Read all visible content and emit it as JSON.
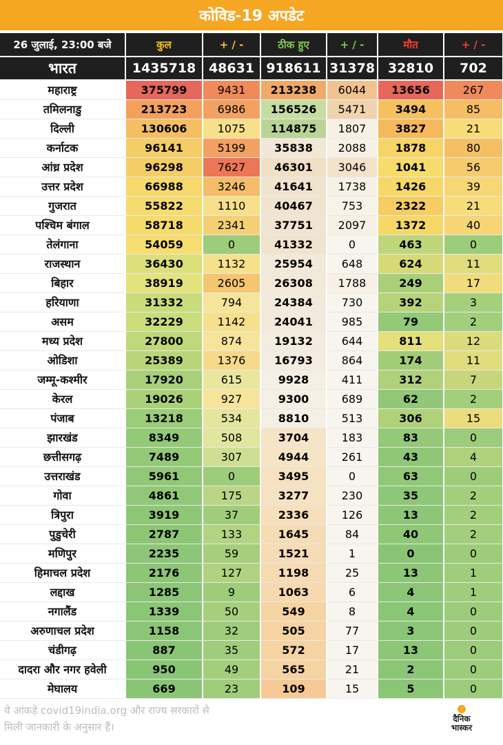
{
  "title": "कोविड-19 अपडेट",
  "headers": {
    "date": "26 जुलाई, 23:00 बजे",
    "total": "कुल",
    "total_change": "+ / -",
    "recovered": "ठीक हुए",
    "recovered_change": "+ / -",
    "deaths": "मौत",
    "deaths_change": "+ / -"
  },
  "header_colors": {
    "total": "#f7c21b",
    "recovered": "#7ec850",
    "deaths": "#ff3b30"
  },
  "national": {
    "name": "भारत",
    "total": "1435718",
    "total_change": "48631",
    "recovered": "918611",
    "recovered_change": "31378",
    "deaths": "32810",
    "deaths_change": "702"
  },
  "rows": [
    {
      "name": "महाराष्ट्र",
      "total": "375799",
      "total_change": "9431",
      "recovered": "213238",
      "recovered_change": "6044",
      "deaths": "13656",
      "deaths_change": "267",
      "colors": [
        "#e8675b",
        "#f08a5a",
        "#f0a967",
        "#f1c391",
        "#e8675b",
        "#f08a5a"
      ]
    },
    {
      "name": "तमिलनाडु",
      "total": "213723",
      "total_change": "6986",
      "recovered": "156526",
      "recovered_change": "5471",
      "deaths": "3494",
      "deaths_change": "85",
      "colors": [
        "#f2a15c",
        "#f3a162",
        "#c7dca2",
        "#f0d3ad",
        "#f5c15e",
        "#f5bd66"
      ]
    },
    {
      "name": "दिल्ली",
      "total": "130606",
      "total_change": "1075",
      "recovered": "114875",
      "recovered_change": "1807",
      "deaths": "3827",
      "deaths_change": "21",
      "colors": [
        "#f4bf62",
        "#f6e08a",
        "#b9d596",
        "#f7f0e4",
        "#f5b95c",
        "#f7dc79"
      ]
    },
    {
      "name": "कर्नाटक",
      "total": "96141",
      "total_change": "5199",
      "recovered": "35838",
      "recovered_change": "2088",
      "deaths": "1878",
      "deaths_change": "80",
      "colors": [
        "#f5cd66",
        "#f3a162",
        "#f2e7d6",
        "#f7f0e4",
        "#f6d466",
        "#f5bf66"
      ]
    },
    {
      "name": "आंध्र प्रदेश",
      "total": "96298",
      "total_change": "7627",
      "recovered": "46301",
      "recovered_change": "3046",
      "deaths": "1041",
      "deaths_change": "56",
      "colors": [
        "#f5cd66",
        "#ec7658",
        "#f0e0c6",
        "#f4e2cb",
        "#f6dc6a",
        "#f6cb6f"
      ]
    },
    {
      "name": "उत्तर प्रदेश",
      "total": "66988",
      "total_change": "3246",
      "recovered": "41641",
      "recovered_change": "1738",
      "deaths": "1426",
      "deaths_change": "39",
      "colors": [
        "#f6d86b",
        "#f4bd6a",
        "#f1e4cf",
        "#f7f0e4",
        "#f6d869",
        "#f7d676"
      ]
    },
    {
      "name": "गुजरात",
      "total": "55822",
      "total_change": "1110",
      "recovered": "40467",
      "recovered_change": "753",
      "deaths": "2322",
      "deaths_change": "21",
      "colors": [
        "#f6dc6e",
        "#f6e08a",
        "#f1e4cf",
        "#f7f3e8",
        "#f6cd63",
        "#f7dc79"
      ]
    },
    {
      "name": "पश्चिम बंगाल",
      "total": "58718",
      "total_change": "2341",
      "recovered": "37751",
      "recovered_change": "2097",
      "deaths": "1372",
      "deaths_change": "40",
      "colors": [
        "#f6da6c",
        "#f5cf74",
        "#f1e5d1",
        "#f7f0e4",
        "#f6d869",
        "#f6d576"
      ]
    },
    {
      "name": "तेलंगाना",
      "total": "54059",
      "total_change": "0",
      "recovered": "41332",
      "recovered_change": "0",
      "deaths": "463",
      "deaths_change": "0",
      "colors": [
        "#f6dd6f",
        "#9dcc7a",
        "#f1e4cf",
        "#f8f4ee",
        "#bfd57a",
        "#9dcc7a"
      ]
    },
    {
      "name": "राजस्थान",
      "total": "36430",
      "total_change": "1132",
      "recovered": "25954",
      "recovered_change": "648",
      "deaths": "624",
      "deaths_change": "11",
      "colors": [
        "#dce07a",
        "#f6e08a",
        "#f3e9d8",
        "#f8f4ee",
        "#d5da76",
        "#dfdc7d"
      ]
    },
    {
      "name": "बिहार",
      "total": "38919",
      "total_change": "2605",
      "recovered": "26308",
      "recovered_change": "1788",
      "deaths": "249",
      "deaths_change": "17",
      "colors": [
        "#e3e27c",
        "#f5c66f",
        "#f3e9d8",
        "#f7f0e4",
        "#a9cf78",
        "#f0dc7a"
      ]
    },
    {
      "name": "हरियाणा",
      "total": "31332",
      "total_change": "794",
      "recovered": "24384",
      "recovered_change": "730",
      "deaths": "392",
      "deaths_change": "3",
      "colors": [
        "#c9dc7a",
        "#f6e49a",
        "#f3eadb",
        "#f8f4ee",
        "#b6d37a",
        "#a6cf7c"
      ]
    },
    {
      "name": "असम",
      "total": "32229",
      "total_change": "1142",
      "recovered": "24041",
      "recovered_change": "985",
      "deaths": "79",
      "deaths_change": "2",
      "colors": [
        "#cbdc7a",
        "#f6e08a",
        "#f3eadb",
        "#f8f4ee",
        "#93c977",
        "#a3ce7b"
      ]
    },
    {
      "name": "मध्य प्रदेश",
      "total": "27800",
      "total_change": "874",
      "recovered": "19132",
      "recovered_change": "644",
      "deaths": "811",
      "deaths_change": "12",
      "colors": [
        "#bfd879",
        "#f6e49a",
        "#f4ecdf",
        "#f8f4ee",
        "#e3df7a",
        "#dcdb7c"
      ]
    },
    {
      "name": "ओडिशा",
      "total": "25389",
      "total_change": "1376",
      "recovered": "16793",
      "recovered_change": "864",
      "deaths": "174",
      "deaths_change": "11",
      "colors": [
        "#b8d679",
        "#f6d98a",
        "#f4ece0",
        "#f8f4ee",
        "#a2cd78",
        "#dfdc7d"
      ]
    },
    {
      "name": "जम्मू-कश्मीर",
      "total": "17920",
      "total_change": "615",
      "recovered": "9928",
      "recovered_change": "411",
      "deaths": "312",
      "deaths_change": "7",
      "colors": [
        "#a7d078",
        "#e9e79e",
        "#f5efe4",
        "#f8f4ee",
        "#b0d179",
        "#c7d67c"
      ]
    },
    {
      "name": "केरल",
      "total": "19026",
      "total_change": "927",
      "recovered": "9300",
      "recovered_change": "689",
      "deaths": "62",
      "deaths_change": "2",
      "colors": [
        "#aad178",
        "#f6e49a",
        "#f5efe4",
        "#f8f4ee",
        "#91c877",
        "#a3ce7b"
      ]
    },
    {
      "name": "पंजाब",
      "total": "13218",
      "total_change": "534",
      "recovered": "8810",
      "recovered_change": "513",
      "deaths": "306",
      "deaths_change": "15",
      "colors": [
        "#9bcc78",
        "#e4e69d",
        "#f5efe4",
        "#f8f4ee",
        "#b0d179",
        "#ecdc7c"
      ]
    },
    {
      "name": "झारखंड",
      "total": "8349",
      "total_change": "508",
      "recovered": "3704",
      "recovered_change": "183",
      "deaths": "83",
      "deaths_change": "0",
      "colors": [
        "#94c977",
        "#e1e59d",
        "#f6e4c6",
        "#f8f4ee",
        "#94c977",
        "#9dcc7a"
      ]
    },
    {
      "name": "छत्तीसगढ़",
      "total": "7489",
      "total_change": "307",
      "recovered": "4944",
      "recovered_change": "261",
      "deaths": "43",
      "deaths_change": "4",
      "colors": [
        "#93c977",
        "#d0de93",
        "#f6e4c6",
        "#f8f4ee",
        "#8fc776",
        "#b0d17b"
      ]
    },
    {
      "name": "उत्तराखंड",
      "total": "5961",
      "total_change": "0",
      "recovered": "3495",
      "recovered_change": "0",
      "deaths": "63",
      "deaths_change": "0",
      "colors": [
        "#91c877",
        "#9dcc7a",
        "#f6e1c0",
        "#f8f4ee",
        "#91c877",
        "#9dcc7a"
      ]
    },
    {
      "name": "गोवा",
      "total": "4861",
      "total_change": "175",
      "recovered": "3277",
      "recovered_change": "230",
      "deaths": "35",
      "deaths_change": "2",
      "colors": [
        "#90c877",
        "#b9d585",
        "#f6e1c0",
        "#f8f4ee",
        "#8ec776",
        "#a3ce7b"
      ]
    },
    {
      "name": "त्रिपुरा",
      "total": "3919",
      "total_change": "37",
      "recovered": "2336",
      "recovered_change": "126",
      "deaths": "13",
      "deaths_change": "2",
      "colors": [
        "#8ec776",
        "#a0cd7b",
        "#f6dfbb",
        "#f8f4ee",
        "#8cc676",
        "#a3ce7b"
      ]
    },
    {
      "name": "पुडुचेरी",
      "total": "2787",
      "total_change": "133",
      "recovered": "1645",
      "recovered_change": "84",
      "deaths": "40",
      "deaths_change": "2",
      "colors": [
        "#8dc776",
        "#b2d382",
        "#f6dcb5",
        "#f8f4ee",
        "#8fc776",
        "#a3ce7b"
      ]
    },
    {
      "name": "मणिपुर",
      "total": "2235",
      "total_change": "59",
      "recovered": "1521",
      "recovered_change": "1",
      "deaths": "0",
      "deaths_change": "0",
      "colors": [
        "#8cc676",
        "#a6cf7d",
        "#f6dcb5",
        "#f8f4ee",
        "#8ac576",
        "#9dcc7a"
      ]
    },
    {
      "name": "हिमाचल प्रदेश",
      "total": "2176",
      "total_change": "127",
      "recovered": "1198",
      "recovered_change": "25",
      "deaths": "13",
      "deaths_change": "1",
      "colors": [
        "#8cc676",
        "#b0d281",
        "#f6dab1",
        "#f8f4ee",
        "#8cc676",
        "#a0cd7b"
      ]
    },
    {
      "name": "लद्दाख",
      "total": "1285",
      "total_change": "9",
      "recovered": "1063",
      "recovered_change": "6",
      "deaths": "4",
      "deaths_change": "1",
      "colors": [
        "#8bc676",
        "#9dcc7a",
        "#f6d9ae",
        "#f8f4ee",
        "#8bc676",
        "#a0cd7b"
      ]
    },
    {
      "name": "नगालैंड",
      "total": "1339",
      "total_change": "50",
      "recovered": "549",
      "recovered_change": "8",
      "deaths": "4",
      "deaths_change": "0",
      "colors": [
        "#8bc676",
        "#a5cf7c",
        "#f6d3a2",
        "#f8f4ee",
        "#8bc676",
        "#9dcc7a"
      ]
    },
    {
      "name": "अरुणाचल प्रदेश",
      "total": "1158",
      "total_change": "32",
      "recovered": "505",
      "recovered_change": "77",
      "deaths": "3",
      "deaths_change": "0",
      "colors": [
        "#8bc676",
        "#a0cd7b",
        "#f6d3a2",
        "#f8f4ee",
        "#8bc676",
        "#9dcc7a"
      ]
    },
    {
      "name": "चंडीगढ़",
      "total": "887",
      "total_change": "35",
      "recovered": "572",
      "recovered_change": "17",
      "deaths": "13",
      "deaths_change": "0",
      "colors": [
        "#8ac576",
        "#a0cd7b",
        "#f6d3a2",
        "#f8f4ee",
        "#8cc676",
        "#9dcc7a"
      ]
    },
    {
      "name": "दादरा और नगर हवेली",
      "total": "950",
      "total_change": "49",
      "recovered": "565",
      "recovered_change": "21",
      "deaths": "2",
      "deaths_change": "0",
      "colors": [
        "#8ac576",
        "#a4ce7c",
        "#f6d3a2",
        "#f8f4ee",
        "#8bc676",
        "#9dcc7a"
      ]
    },
    {
      "name": "मेघालय",
      "total": "669",
      "total_change": "23",
      "recovered": "109",
      "recovered_change": "15",
      "deaths": "5",
      "deaths_change": "0",
      "colors": [
        "#8ac576",
        "#9fcd7b",
        "#f6c996",
        "#f8f4ee",
        "#8bc676",
        "#9dcc7a"
      ]
    }
  ],
  "footer": {
    "note_line1": "ये आंकड़े covid19india.org और राज्य सरकारों से",
    "note_line2": "मिली जानकारी के अनुसार हैं।",
    "logo_line1": "दैनिक",
    "logo_line2": "भास्कर"
  }
}
